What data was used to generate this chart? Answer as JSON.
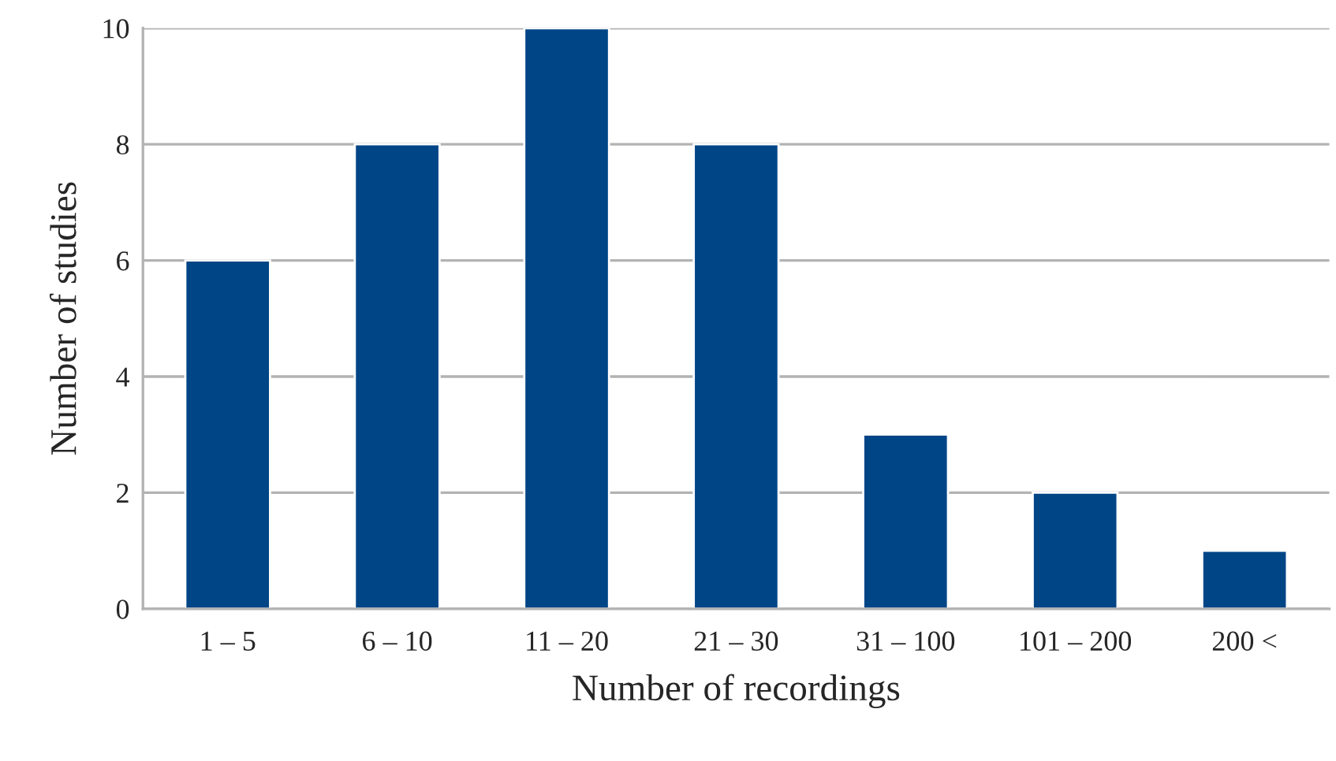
{
  "chart_data": {
    "type": "bar",
    "xlabel": "Number of recordings",
    "ylabel": "Number of studies",
    "categories": [
      "1 – 5",
      "6 – 10",
      "11 – 20",
      "21 – 30",
      "31 – 100",
      "101 – 200",
      "200 <"
    ],
    "values": [
      6,
      8,
      10,
      8,
      3,
      2,
      1
    ],
    "color": "#004586",
    "ylim": [
      0,
      10
    ],
    "yticks": [
      0,
      2,
      4,
      6,
      8,
      10
    ],
    "grid": "y"
  }
}
